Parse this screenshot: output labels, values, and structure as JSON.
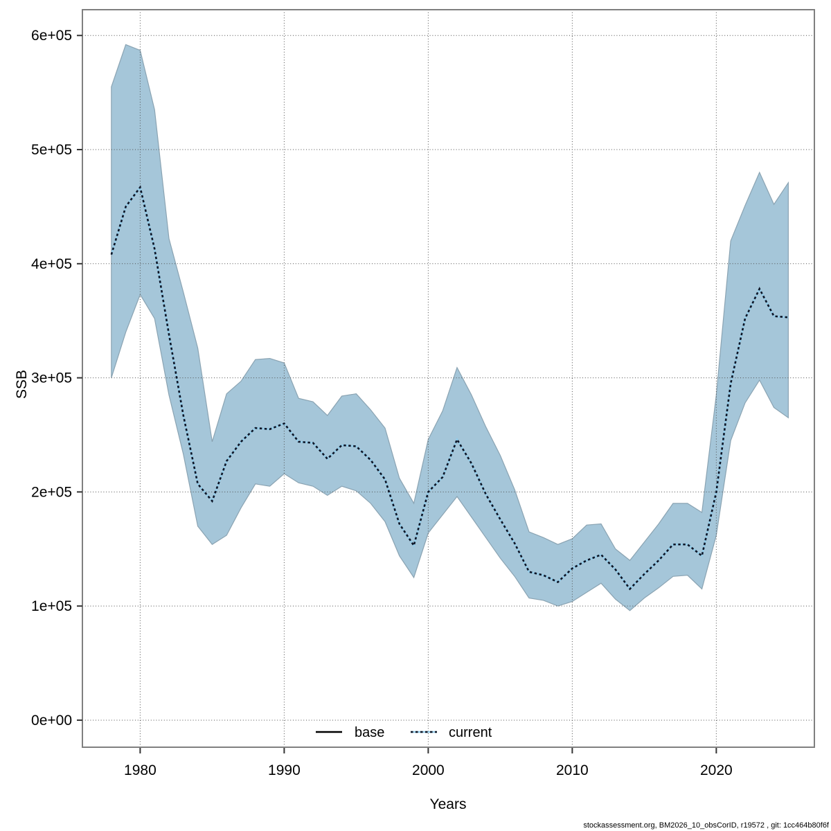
{
  "figure": {
    "footer": "stockassessment.org, BM2026_10_obsCorID, r19572 , git: 1cc464b80f6f"
  },
  "chart_data": {
    "type": "area",
    "title": "",
    "xlabel": "Years",
    "ylabel": "SSB",
    "grid": true,
    "xlim": [
      1975.99,
      2026.81
    ],
    "ylim": [
      -23700,
      622600
    ],
    "x_ticks": {
      "values": [
        1980,
        1990,
        2000,
        2010,
        2020
      ],
      "labels": [
        "1980",
        "1990",
        "2000",
        "2010",
        "2020"
      ]
    },
    "y_ticks": {
      "values": [
        0,
        100000,
        200000,
        300000,
        400000,
        500000,
        600000
      ],
      "labels": [
        "0e+00",
        "1e+05",
        "2e+05",
        "3e+05",
        "4e+05",
        "5e+05",
        "6e+05"
      ]
    },
    "colors": {
      "band_fill": "#a5c6d9",
      "band_edge": "#8aa3b2",
      "current_under": "#93cbe8",
      "current_dash": "#0d1526",
      "base_line": "#000000"
    },
    "legend": {
      "position": "bottom-center",
      "items": [
        {
          "label": "base",
          "line": "solid",
          "color": "#000000"
        },
        {
          "label": "current",
          "line": "dotted",
          "color": "#0d1526"
        }
      ]
    },
    "x": [
      1978,
      1979,
      1980,
      1981,
      1982,
      1983,
      1984,
      1985,
      1986,
      1987,
      1988,
      1989,
      1990,
      1991,
      1992,
      1993,
      1994,
      1995,
      1996,
      1997,
      1998,
      1999,
      2000,
      2001,
      2002,
      2003,
      2004,
      2005,
      2006,
      2007,
      2008,
      2009,
      2010,
      2011,
      2012,
      2013,
      2014,
      2015,
      2016,
      2017,
      2018,
      2019,
      2020,
      2021,
      2022,
      2023,
      2024,
      2025
    ],
    "series": [
      {
        "name": "current",
        "values": [
          408000,
          450000,
          467000,
          413000,
          338000,
          267000,
          207000,
          192000,
          227000,
          244000,
          256000,
          255000,
          260000,
          244000,
          243000,
          229000,
          241000,
          240000,
          228000,
          211000,
          172000,
          153000,
          200000,
          213000,
          246000,
          225000,
          198000,
          176000,
          155000,
          130000,
          127000,
          121000,
          133000,
          140000,
          145000,
          132000,
          115000,
          128000,
          140000,
          154000,
          154000,
          144000,
          200000,
          295000,
          352000,
          378000,
          354000,
          353000
        ]
      },
      {
        "name": "current_ci_lower",
        "values": [
          300000,
          340000,
          373000,
          352000,
          285000,
          233000,
          170000,
          154000,
          162000,
          186000,
          207000,
          205000,
          216000,
          208000,
          205000,
          197000,
          205000,
          201000,
          190000,
          174000,
          144000,
          125000,
          164000,
          180000,
          196000,
          178000,
          160000,
          142000,
          126000,
          107000,
          105000,
          100000,
          104000,
          112000,
          120000,
          106000,
          96000,
          107000,
          116000,
          126000,
          127000,
          115000,
          162000,
          245000,
          278000,
          298000,
          274000,
          265000
        ]
      },
      {
        "name": "current_ci_upper",
        "values": [
          555000,
          592000,
          587000,
          535000,
          422000,
          375000,
          326000,
          244000,
          286000,
          297000,
          316000,
          317000,
          313000,
          282000,
          279000,
          267000,
          284000,
          286000,
          272000,
          256000,
          212000,
          190000,
          246000,
          271000,
          309000,
          285000,
          257000,
          232000,
          202000,
          165000,
          160000,
          154000,
          159000,
          171000,
          172000,
          150000,
          140000,
          156000,
          172000,
          190000,
          190000,
          182000,
          285000,
          420000,
          451000,
          480000,
          452000,
          471000
        ]
      }
    ]
  }
}
